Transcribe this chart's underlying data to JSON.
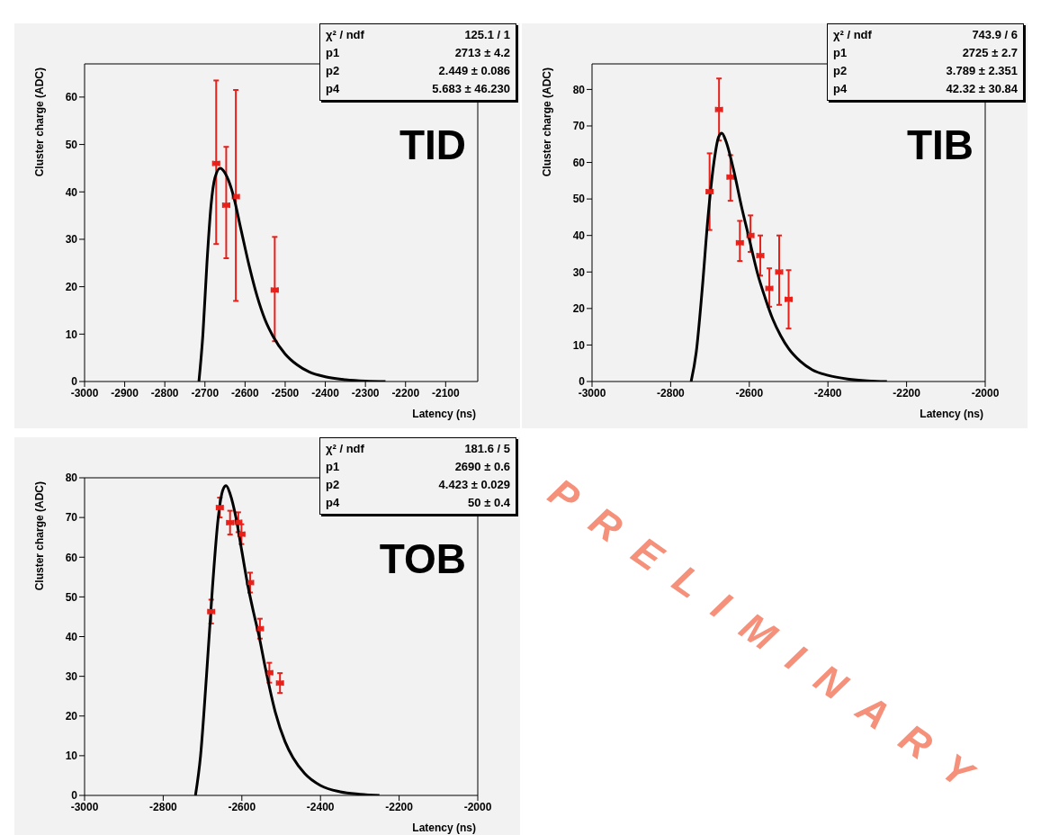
{
  "chart_data": [
    {
      "type": "scatter",
      "title": "TID",
      "xlabel": "Latency (ns)",
      "ylabel": "Cluster charge (ADC)",
      "xlim": [
        -3000,
        -2020
      ],
      "ylim": [
        0,
        67
      ],
      "xticks": [
        -3000,
        -2900,
        -2800,
        -2700,
        -2600,
        -2500,
        -2400,
        -2300,
        -2200,
        -2100
      ],
      "yticks": [
        0,
        10,
        20,
        30,
        40,
        50,
        60
      ],
      "annotations": [
        "χ² / ndf",
        "125.1 / 1",
        "p1",
        "2713 ± 4.2",
        "p2",
        "2.449 ± 0.086",
        "p4",
        "5.683 ± 46.230"
      ],
      "series": [
        {
          "marker": "square",
          "color": "#e8201a",
          "x": [
            -2672,
            -2647,
            -2623,
            -2526
          ],
          "values": [
            46,
            37.2,
            39,
            19.3
          ],
          "errors": [
            [
              29,
              63.5
            ],
            [
              26,
              49.5
            ],
            [
              17,
              61.5
            ],
            [
              8.5,
              30.5
            ]
          ],
          "xerrors": [
            8,
            8,
            8,
            8
          ]
        },
        {
          "type": "line",
          "marker": "none",
          "color": "#000000",
          "x": [
            -2715,
            -2705,
            -2695,
            -2685,
            -2675,
            -2662,
            -2650,
            -2630,
            -2610,
            -2590,
            -2570,
            -2550,
            -2530,
            -2500,
            -2470,
            -2440,
            -2400,
            -2350,
            -2300,
            -2250
          ],
          "values": [
            0,
            10,
            25,
            37,
            43,
            45,
            44,
            39.5,
            32,
            24.5,
            18,
            13,
            9.5,
            5.8,
            3.5,
            2,
            1,
            0.4,
            0.1,
            0
          ]
        }
      ]
    },
    {
      "type": "scatter",
      "title": "TIB",
      "xlabel": "Latency (ns)",
      "ylabel": "Cluster charge (ADC)",
      "xlim": [
        -3000,
        -2000
      ],
      "ylim": [
        0,
        87
      ],
      "xticks": [
        -3000,
        -2800,
        -2600,
        -2400,
        -2200,
        -2000
      ],
      "yticks": [
        0,
        10,
        20,
        30,
        40,
        50,
        60,
        70,
        80
      ],
      "annotations": [
        "χ² / ndf",
        "743.9 / 6",
        "p1",
        "2725 ± 2.7",
        "p2",
        "3.789 ± 2.351",
        "p4",
        "42.32 ± 30.84"
      ],
      "series": [
        {
          "marker": "square",
          "color": "#e8201a",
          "x": [
            -2701,
            -2677,
            -2648,
            -2624,
            -2597,
            -2572,
            -2549,
            -2524,
            -2500
          ],
          "values": [
            52,
            74.5,
            56,
            38,
            40,
            34.5,
            25.5,
            30,
            22.5
          ],
          "errors": [
            [
              41.5,
              62.5
            ],
            [
              66,
              83
            ],
            [
              49.5,
              62
            ],
            [
              33,
              44
            ],
            [
              35.5,
              45.5
            ],
            [
              29,
              40
            ],
            [
              20.5,
              31
            ],
            [
              21,
              40
            ],
            [
              14.5,
              30.5
            ]
          ],
          "xerrors": [
            8,
            8,
            8,
            8,
            8,
            8,
            8,
            8,
            8
          ]
        },
        {
          "type": "line",
          "marker": "none",
          "color": "#000000",
          "x": [
            -2748,
            -2735,
            -2720,
            -2705,
            -2690,
            -2678,
            -2670,
            -2660,
            -2640,
            -2620,
            -2600,
            -2580,
            -2560,
            -2540,
            -2520,
            -2500,
            -2470,
            -2440,
            -2400,
            -2350,
            -2300,
            -2250
          ],
          "values": [
            0,
            8,
            25,
            45,
            60,
            67,
            68,
            66,
            58,
            48,
            39,
            30,
            23,
            17,
            12.5,
            9,
            5.5,
            3.2,
            1.7,
            0.7,
            0.2,
            0
          ]
        }
      ]
    },
    {
      "type": "scatter",
      "title": "TOB",
      "xlabel": "Latency (ns)",
      "ylabel": "Cluster charge (ADC)",
      "xlim": [
        -3000,
        -2000
      ],
      "ylim": [
        0,
        80
      ],
      "xticks": [
        -3000,
        -2800,
        -2600,
        -2400,
        -2200,
        -2000
      ],
      "yticks": [
        0,
        10,
        20,
        30,
        40,
        50,
        60,
        70,
        80
      ],
      "annotations": [
        "χ² / ndf",
        "181.6 / 5",
        "p1",
        "2690 ± 0.6",
        "p2",
        "4.423 ± 0.029",
        "p4",
        "50 ± 0.4",
        "PRELIMINARY"
      ],
      "series": [
        {
          "marker": "square",
          "color": "#e8201a",
          "x": [
            -2678,
            -2656,
            -2630,
            -2609,
            -2601,
            -2579,
            -2554,
            -2530,
            -2503
          ],
          "values": [
            46.3,
            72.5,
            68.7,
            68.8,
            65.8,
            53.6,
            42,
            30.9,
            28.3
          ],
          "errors": [
            3,
            2.5,
            3,
            2.5,
            2.5,
            2.5,
            2.5,
            2.5,
            2.5
          ],
          "xerrors": [
            8,
            8,
            8,
            8,
            8,
            8,
            8,
            8,
            8
          ]
        },
        {
          "type": "line",
          "marker": "none",
          "color": "#000000",
          "x": [
            -2718,
            -2705,
            -2690,
            -2675,
            -2660,
            -2648,
            -2640,
            -2630,
            -2615,
            -2600,
            -2585,
            -2570,
            -2556,
            -2540,
            -2515,
            -2490,
            -2470,
            -2440,
            -2400,
            -2350,
            -2300,
            -2250
          ],
          "values": [
            0,
            10,
            30,
            52,
            70,
            77,
            78,
            76,
            70,
            61.5,
            53,
            46,
            40,
            32,
            21,
            13.5,
            9.5,
            5.5,
            2.5,
            0.9,
            0.3,
            0
          ]
        }
      ]
    }
  ]
}
